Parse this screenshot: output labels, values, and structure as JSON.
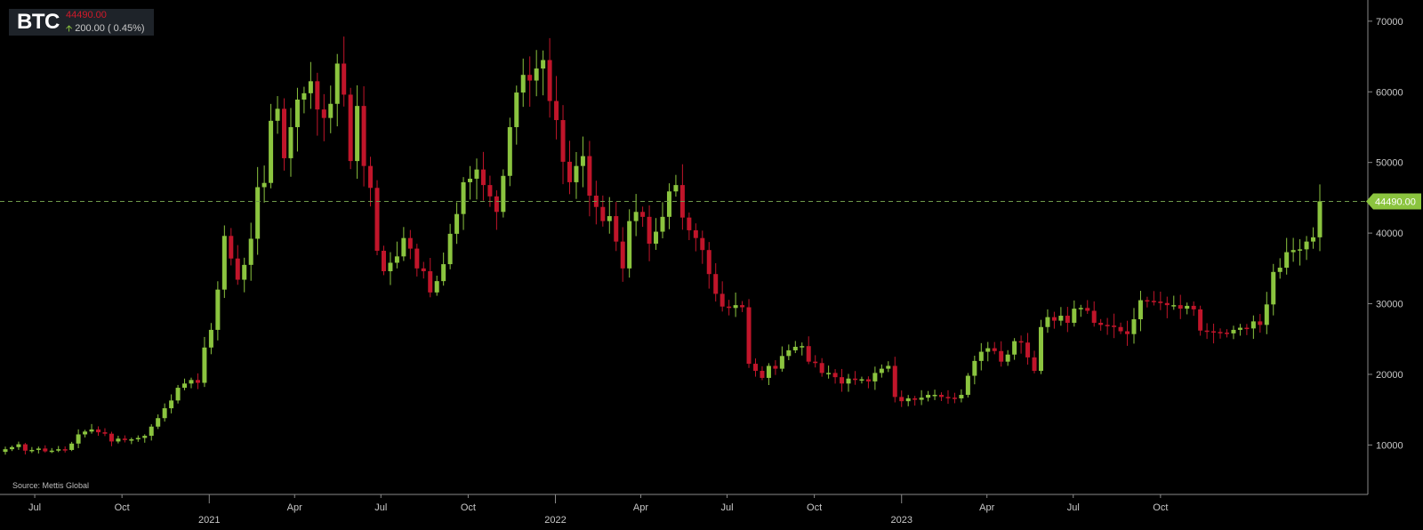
{
  "ticker": {
    "symbol": "BTC",
    "price": "44490.00",
    "change": "200.00 ( 0.45%)"
  },
  "source": "Source: Mettis Global",
  "colors": {
    "up": "#8bc43f",
    "down": "#c0152a",
    "last_line": "#6f9a4a",
    "axis": "#888888"
  },
  "chart_data": {
    "type": "candlestick",
    "title": "BTC",
    "x_start": "2020-05-31",
    "x_interval": "weekly",
    "ylim": [
      3000,
      73000
    ],
    "y_ticks": [
      10000,
      20000,
      30000,
      40000,
      50000,
      60000,
      70000
    ],
    "x_ticks": [
      {
        "date": "2020-07-01",
        "label": "Jul",
        "year": ""
      },
      {
        "date": "2020-10-01",
        "label": "Oct",
        "year": ""
      },
      {
        "date": "2021-01-01",
        "label": "",
        "year": "2021"
      },
      {
        "date": "2021-04-01",
        "label": "Apr",
        "year": ""
      },
      {
        "date": "2021-07-01",
        "label": "Jul",
        "year": ""
      },
      {
        "date": "2021-10-01",
        "label": "Oct",
        "year": ""
      },
      {
        "date": "2022-01-01",
        "label": "",
        "year": "2022"
      },
      {
        "date": "2022-04-01",
        "label": "Apr",
        "year": ""
      },
      {
        "date": "2022-07-01",
        "label": "Jul",
        "year": ""
      },
      {
        "date": "2022-10-01",
        "label": "Oct",
        "year": ""
      },
      {
        "date": "2023-01-01",
        "label": "",
        "year": "2023"
      },
      {
        "date": "2023-04-01",
        "label": "Apr",
        "year": ""
      },
      {
        "date": "2023-07-01",
        "label": "Jul",
        "year": ""
      },
      {
        "date": "2023-10-01",
        "label": "Oct",
        "year": ""
      }
    ],
    "last_value": 44490,
    "last_label": "44490.00",
    "closes": [
      9400,
      9700,
      10100,
      9200,
      9300,
      9500,
      9100,
      9200,
      9400,
      9300,
      10200,
      11500,
      11900,
      12200,
      11800,
      11600,
      10500,
      10900,
      10700,
      10800,
      11000,
      11300,
      12600,
      13800,
      15200,
      16300,
      18100,
      18700,
      19200,
      18800,
      23800,
      26300,
      32000,
      39600,
      36400,
      33400,
      35500,
      39200,
      46500,
      47100,
      55900,
      57600,
      50600,
      55000,
      58900,
      59800,
      61500,
      57500,
      56300,
      58300,
      64000,
      59600,
      50200,
      58000,
      49500,
      46400,
      37500,
      34600,
      35800,
      36700,
      39300,
      37800,
      35000,
      34600,
      31600,
      33200,
      35600,
      39900,
      42700,
      47200,
      47700,
      49000,
      46800,
      45200,
      43000,
      48100,
      55000,
      59900,
      62400,
      61600,
      63300,
      64500,
      58700,
      56000,
      50100,
      47200,
      49500,
      50900,
      45300,
      43700,
      41700,
      42400,
      38800,
      35000,
      41700,
      43000,
      42300,
      38500,
      40200,
      42300,
      45900,
      46800,
      42200,
      40400,
      39300,
      37600,
      34200,
      31400,
      29600,
      29400,
      29800,
      29500,
      21500,
      20500,
      19500,
      21200,
      20800,
      22600,
      23400,
      23900,
      24000,
      21800,
      21600,
      20200,
      20200,
      19600,
      18700,
      19400,
      19200,
      19300,
      19000,
      20200,
      20800,
      21200,
      16800,
      16200,
      16600,
      16400,
      16700,
      17100,
      17100,
      16800,
      16700,
      16600,
      17100,
      19800,
      21900,
      23200,
      23700,
      23300,
      21800,
      22800,
      24700,
      24500,
      22400,
      20500,
      26700,
      28100,
      27600,
      28300,
      27300,
      29300,
      29400,
      29000,
      27300,
      27000,
      26900,
      26700,
      26100,
      25700,
      27800,
      30500,
      30400,
      30300,
      30100,
      29800,
      29800,
      29300,
      29700,
      29200,
      26200,
      26100,
      26000,
      25900,
      25800,
      26300,
      26600,
      26500,
      27500,
      27000,
      29900,
      34500,
      35100,
      37300,
      37600,
      37700,
      38800,
      39400,
      44490
    ]
  }
}
